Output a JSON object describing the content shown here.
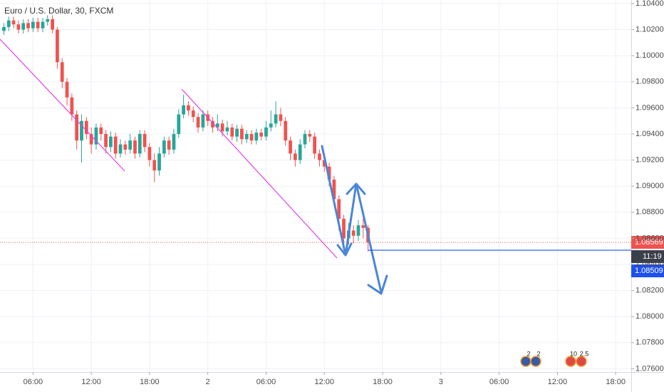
{
  "chart_data": {
    "type": "candlestick",
    "title": "Euro / U.S. Dollar, 30, FXCM",
    "up_color": "#26a69a",
    "down_color": "#ef5350",
    "x": [
      3,
      3.5,
      4,
      4.5,
      5,
      5.5,
      6,
      6.5,
      7,
      7.5,
      8,
      8.5,
      9,
      9.5,
      10,
      10.5,
      11,
      11.5,
      12,
      12.5,
      13,
      13.5,
      14,
      14.5,
      15,
      15.5,
      16,
      16.5,
      17,
      17.5,
      18,
      18.5,
      19,
      19.5,
      20,
      20.5,
      21,
      21.5,
      22,
      22.5,
      23,
      23.5,
      24,
      24.5,
      25,
      25.5,
      26,
      26.5,
      27,
      27.5,
      28,
      28.5,
      29,
      29.5,
      30,
      30.5,
      31,
      31.5,
      32,
      32.5,
      33,
      33.5,
      34,
      34.5,
      35,
      35.5,
      36,
      36.5,
      37,
      37.5,
      38,
      38.5,
      39,
      39.5,
      40,
      40.5
    ],
    "open": [
      1.1019,
      1.1022,
      1.1027,
      1.1024,
      1.102,
      1.1025,
      1.1021,
      1.1026,
      1.1021,
      1.1026,
      1.1028,
      1.102,
      1.0995,
      1.098,
      1.0968,
      1.0955,
      1.0935,
      1.095,
      1.094,
      1.0932,
      1.0945,
      1.094,
      1.093,
      1.0938,
      1.0925,
      1.0932,
      1.0928,
      1.0935,
      1.0925,
      1.094,
      1.093,
      1.092,
      1.0912,
      1.0925,
      1.0935,
      1.0928,
      1.094,
      1.0955,
      1.0962,
      1.0958,
      1.0953,
      1.0945,
      1.0955,
      1.095,
      1.0945,
      1.0948,
      1.0942,
      1.0945,
      1.0938,
      1.0944,
      1.0936,
      1.094,
      1.0935,
      1.0941,
      1.0938,
      1.0945,
      1.0948,
      1.0955,
      1.095,
      1.0935,
      1.0925,
      1.092,
      1.0932,
      1.094,
      1.0938,
      1.0925,
      1.092,
      1.0915,
      1.0905,
      1.089,
      1.0875,
      1.086,
      1.0866,
      1.0862,
      1.087,
      1.0868
    ],
    "high": [
      1.1025,
      1.103,
      1.103,
      1.1027,
      1.1028,
      1.1028,
      1.1029,
      1.1029,
      1.1029,
      1.1031,
      1.1031,
      1.1022,
      1.0998,
      1.0983,
      1.0971,
      1.0958,
      1.0955,
      1.0953,
      1.0945,
      1.0948,
      1.0948,
      1.0943,
      1.0942,
      1.0941,
      1.0936,
      1.0935,
      1.094,
      1.0938,
      1.0943,
      1.0943,
      1.0933,
      1.0925,
      1.093,
      1.0938,
      1.0938,
      1.0944,
      1.0959,
      1.097,
      1.0965,
      1.0961,
      1.0956,
      1.0958,
      1.0958,
      1.0953,
      1.0955,
      1.0951,
      1.095,
      1.0948,
      1.0947,
      1.0947,
      1.0943,
      1.0943,
      1.0944,
      1.0944,
      1.095,
      1.0958,
      1.0965,
      1.096,
      1.0953,
      1.0938,
      1.0928,
      1.0936,
      1.0943,
      1.0943,
      1.0941,
      1.0928,
      1.0925,
      1.0918,
      1.0908,
      1.0893,
      1.0878,
      1.0872,
      1.087,
      1.0874,
      1.0875,
      1.087
    ],
    "low": [
      1.1016,
      1.1019,
      1.1021,
      1.1017,
      1.1017,
      1.1018,
      1.1018,
      1.1018,
      1.1018,
      1.1023,
      1.1017,
      1.099,
      1.0975,
      1.0962,
      1.095,
      1.0928,
      1.0918,
      1.0936,
      1.0925,
      1.0928,
      1.0935,
      1.0925,
      1.0926,
      1.0921,
      1.0922,
      1.0924,
      1.0925,
      1.0921,
      1.0922,
      1.0926,
      1.0915,
      1.0903,
      1.0908,
      1.0922,
      1.0924,
      1.0925,
      1.0937,
      1.0952,
      1.0954,
      1.0949,
      1.0941,
      1.0942,
      1.0946,
      1.0941,
      1.0942,
      1.0938,
      1.0939,
      1.0935,
      1.0934,
      1.0932,
      1.0933,
      1.0932,
      1.0932,
      1.0935,
      1.0935,
      1.0942,
      1.0945,
      1.0946,
      1.0931,
      1.092,
      1.0915,
      1.0917,
      1.0929,
      1.0934,
      1.0921,
      1.0915,
      1.0911,
      1.09,
      1.0885,
      1.0866,
      1.0852,
      1.0855,
      1.0856,
      1.0858,
      1.086,
      1.085
    ],
    "close": [
      1.1022,
      1.1027,
      1.1024,
      1.102,
      1.1025,
      1.1021,
      1.1026,
      1.1021,
      1.1026,
      1.1028,
      1.102,
      1.0995,
      1.098,
      1.0968,
      1.0955,
      1.0935,
      1.095,
      1.094,
      1.0932,
      1.0945,
      1.094,
      1.093,
      1.0938,
      1.0925,
      1.0932,
      1.0928,
      1.0935,
      1.0925,
      1.094,
      1.093,
      1.092,
      1.0912,
      1.0925,
      1.0935,
      1.0928,
      1.094,
      1.0955,
      1.0962,
      1.0958,
      1.0953,
      1.0945,
      1.0955,
      1.095,
      1.0945,
      1.0948,
      1.0942,
      1.0945,
      1.0938,
      1.0944,
      1.0936,
      1.094,
      1.0935,
      1.0941,
      1.0938,
      1.0945,
      1.0948,
      1.0955,
      1.095,
      1.0935,
      1.0925,
      1.092,
      1.0932,
      1.094,
      1.0938,
      1.0925,
      1.092,
      1.0915,
      1.0905,
      1.089,
      1.0875,
      1.086,
      1.0866,
      1.0862,
      1.087,
      1.0868,
      1.08569
    ],
    "xlim": [
      2.6,
      67.6
    ],
    "ylim": [
      1.07575,
      1.10427
    ],
    "xticks": [
      {
        "value": 6,
        "label": "06:00"
      },
      {
        "value": 12,
        "label": "12:00"
      },
      {
        "value": 18,
        "label": "18:00"
      },
      {
        "value": 24,
        "label": "2"
      },
      {
        "value": 30,
        "label": "06:00"
      },
      {
        "value": 36,
        "label": "12:00"
      },
      {
        "value": 42,
        "label": "18:00"
      },
      {
        "value": 48,
        "label": "3"
      },
      {
        "value": 54,
        "label": "06:00"
      },
      {
        "value": 60,
        "label": "12:00"
      },
      {
        "value": 66,
        "label": "18:00"
      }
    ],
    "yticks": [
      {
        "value": 1.076,
        "label": "1.07600"
      },
      {
        "value": 1.078,
        "label": "1.07800"
      },
      {
        "value": 1.08,
        "label": "1.08000"
      },
      {
        "value": 1.082,
        "label": "1.08200"
      },
      {
        "value": 1.084,
        "label": "1.08400"
      },
      {
        "value": 1.086,
        "label": "1.08600"
      },
      {
        "value": 1.088,
        "label": "1.08800"
      },
      {
        "value": 1.09,
        "label": "1.09000"
      },
      {
        "value": 1.092,
        "label": "1.09200"
      },
      {
        "value": 1.094,
        "label": "1.09400"
      },
      {
        "value": 1.096,
        "label": "1.09600"
      },
      {
        "value": 1.098,
        "label": "1.09800"
      },
      {
        "value": 1.1,
        "label": "1.10000"
      },
      {
        "value": 1.102,
        "label": "1.10200"
      },
      {
        "value": 1.104,
        "label": "1.10400"
      }
    ],
    "grid": true,
    "last_price": 1.08569,
    "countdown": "11:19",
    "level": {
      "value": 1.08509,
      "color": "#1e4ff0"
    },
    "event_labels": [
      "2",
      "2",
      "10",
      "2.5"
    ]
  }
}
